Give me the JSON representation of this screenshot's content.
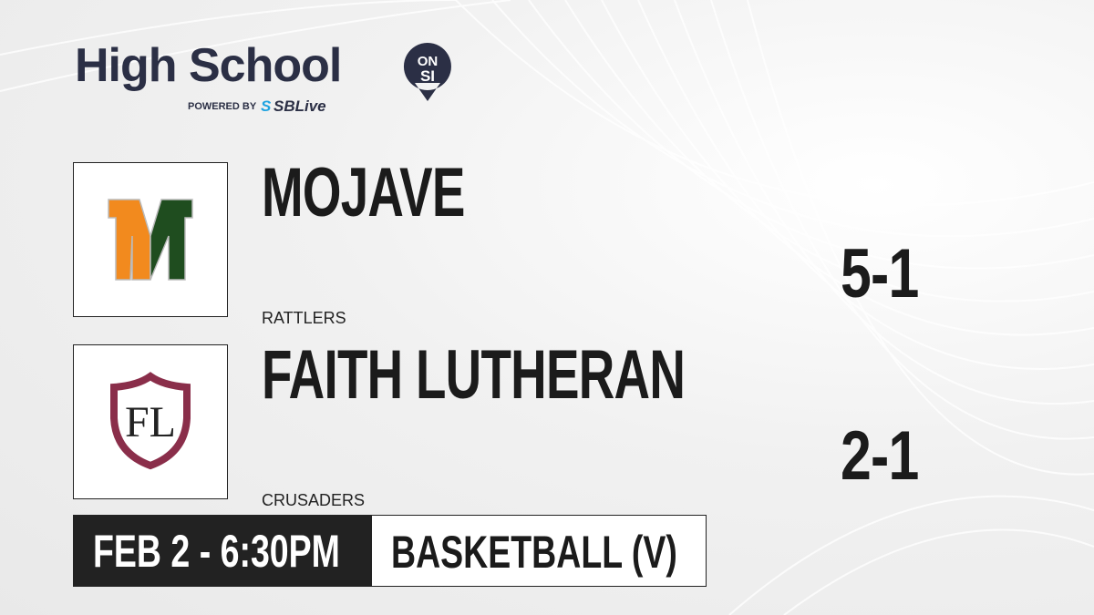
{
  "brand": {
    "title": "High School",
    "badge_top": "ON",
    "badge_bottom": "SI",
    "powered_by": "POWERED BY",
    "partner_prefix": "S",
    "partner": "SBLive",
    "colors": {
      "navy": "#2b2f45",
      "blue": "#1fa3e0"
    }
  },
  "teams": [
    {
      "name": "MOJAVE",
      "mascot": "RATTLERS",
      "record": "5-1",
      "logo_letters": "M",
      "logo_colors": [
        "#f28a1e",
        "#1f4d1f"
      ]
    },
    {
      "name": "FAITH LUTHERAN",
      "mascot": "CRUSADERS",
      "record": "2-1",
      "logo_letters": "FL",
      "logo_colors": [
        "#8a2e4a",
        "#222222"
      ]
    }
  ],
  "game": {
    "datetime": "FEB 2 - 6:30PM",
    "sport": "BASKETBALL (V)"
  }
}
